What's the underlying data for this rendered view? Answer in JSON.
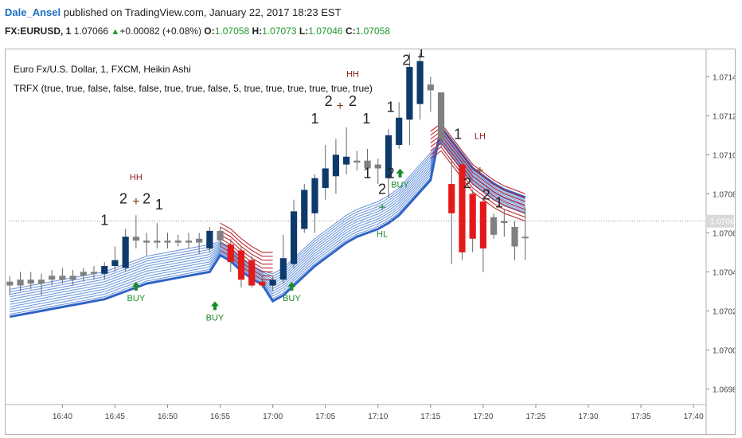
{
  "header": {
    "author": "Dale_Ansel",
    "published_text": "published on TradingView.com, January 22, 2017 18:23 EST",
    "symbol": "FX:EURUSD, 1",
    "last": "1.07066",
    "change": "+0.00082 (+0.08%)",
    "open_label": "O:",
    "open": "1.07058",
    "high_label": "H:",
    "high": "1.07073",
    "low_label": "L:",
    "low": "1.07046",
    "close_label": "C:",
    "close": "1.07058"
  },
  "chart_data": {
    "type": "candlestick",
    "title": "Euro Fx/U.S. Dollar, 1, FXCM, Heikin Ashi",
    "indicator": "TRFX (true, true, false, false, false, true, true, false, 5, true, true, true, true, true, true)",
    "price_label": "1.07066",
    "last_price": 1.07066,
    "y_ticks": [
      1.0714,
      1.0712,
      1.071,
      1.0708,
      1.0706,
      1.0704,
      1.0702,
      1.07,
      1.0698
    ],
    "y_tick_labels": [
      "1.07140",
      "1.07120",
      "1.07100",
      "1.07080",
      "1.07060",
      "1.07040",
      "1.07020",
      "1.07000",
      "1.06980"
    ],
    "ylim": [
      1.06972,
      1.07154
    ],
    "x_ticks": [
      40,
      45,
      50,
      55,
      60,
      65,
      70,
      75,
      80,
      85,
      90,
      95,
      100
    ],
    "x_tick_labels": [
      "16:40",
      "16:45",
      "16:50",
      "16:55",
      "17:00",
      "17:05",
      "17:10",
      "17:15",
      "17:20",
      "17:25",
      "17:30",
      "17:35",
      "17:40"
    ],
    "xlim": [
      34.9,
      101.2
    ],
    "colors": {
      "up": "#0d3a6b",
      "down": "#e31a1a",
      "neutral": "#808080",
      "ribbon_up": "#2f63c7",
      "ribbon_down": "#b8242a",
      "signal": "#1a8a2a",
      "hh": "#8b2020"
    },
    "candles": [
      {
        "t": 35,
        "o": 1.07035,
        "h": 1.07038,
        "l": 1.07028,
        "c": 1.07033,
        "k": "n"
      },
      {
        "t": 36,
        "o": 1.07033,
        "h": 1.0704,
        "l": 1.0703,
        "c": 1.07036,
        "k": "n"
      },
      {
        "t": 37,
        "o": 1.07036,
        "h": 1.0704,
        "l": 1.07031,
        "c": 1.07034,
        "k": "n"
      },
      {
        "t": 38,
        "o": 1.07034,
        "h": 1.07039,
        "l": 1.07028,
        "c": 1.07036,
        "k": "n"
      },
      {
        "t": 39,
        "o": 1.07036,
        "h": 1.07041,
        "l": 1.07033,
        "c": 1.07038,
        "k": "n"
      },
      {
        "t": 40,
        "o": 1.07038,
        "h": 1.07042,
        "l": 1.07034,
        "c": 1.07036,
        "k": "n"
      },
      {
        "t": 41,
        "o": 1.07036,
        "h": 1.07041,
        "l": 1.07033,
        "c": 1.07038,
        "k": "n"
      },
      {
        "t": 42,
        "o": 1.07038,
        "h": 1.07042,
        "l": 1.07035,
        "c": 1.0704,
        "k": "n"
      },
      {
        "t": 43,
        "o": 1.0704,
        "h": 1.07043,
        "l": 1.07036,
        "c": 1.07039,
        "k": "n"
      },
      {
        "t": 44,
        "o": 1.07039,
        "h": 1.07045,
        "l": 1.07036,
        "c": 1.07043,
        "k": "u"
      },
      {
        "t": 45,
        "o": 1.07043,
        "h": 1.07053,
        "l": 1.0704,
        "c": 1.07046,
        "k": "u"
      },
      {
        "t": 46,
        "o": 1.07042,
        "h": 1.07062,
        "l": 1.0704,
        "c": 1.07058,
        "k": "u"
      },
      {
        "t": 47,
        "o": 1.07058,
        "h": 1.07069,
        "l": 1.07052,
        "c": 1.07056,
        "k": "n"
      },
      {
        "t": 48,
        "o": 1.07056,
        "h": 1.0706,
        "l": 1.07048,
        "c": 1.07055,
        "k": "n"
      },
      {
        "t": 49,
        "o": 1.07055,
        "h": 1.07065,
        "l": 1.07052,
        "c": 1.07056,
        "k": "n"
      },
      {
        "t": 50,
        "o": 1.07056,
        "h": 1.0706,
        "l": 1.07052,
        "c": 1.07055,
        "k": "n"
      },
      {
        "t": 51,
        "o": 1.07055,
        "h": 1.07059,
        "l": 1.07053,
        "c": 1.07056,
        "k": "n"
      },
      {
        "t": 52,
        "o": 1.07056,
        "h": 1.0706,
        "l": 1.07052,
        "c": 1.07055,
        "k": "n"
      },
      {
        "t": 53,
        "o": 1.07055,
        "h": 1.0706,
        "l": 1.07049,
        "c": 1.07057,
        "k": "n"
      },
      {
        "t": 54,
        "o": 1.07052,
        "h": 1.07063,
        "l": 1.0705,
        "c": 1.07061,
        "k": "u"
      },
      {
        "t": 55,
        "o": 1.07061,
        "h": 1.07063,
        "l": 1.07053,
        "c": 1.07056,
        "k": "n"
      },
      {
        "t": 56,
        "o": 1.07054,
        "h": 1.07057,
        "l": 1.0704,
        "c": 1.07045,
        "k": "d"
      },
      {
        "t": 57,
        "o": 1.07051,
        "h": 1.07053,
        "l": 1.07032,
        "c": 1.07036,
        "k": "d"
      },
      {
        "t": 58,
        "o": 1.07046,
        "h": 1.07048,
        "l": 1.07032,
        "c": 1.07033,
        "k": "d"
      },
      {
        "t": 59,
        "o": 1.07035,
        "h": 1.07038,
        "l": 1.07032,
        "c": 1.07033,
        "k": "d"
      },
      {
        "t": 60,
        "o": 1.07033,
        "h": 1.07038,
        "l": 1.0703,
        "c": 1.07036,
        "k": "u"
      },
      {
        "t": 61,
        "o": 1.07036,
        "h": 1.07059,
        "l": 1.07034,
        "c": 1.07047,
        "k": "u"
      },
      {
        "t": 62,
        "o": 1.07044,
        "h": 1.07077,
        "l": 1.07042,
        "c": 1.07071,
        "k": "u"
      },
      {
        "t": 63,
        "o": 1.07062,
        "h": 1.07085,
        "l": 1.0706,
        "c": 1.07082,
        "k": "u"
      },
      {
        "t": 64,
        "o": 1.0707,
        "h": 1.0709,
        "l": 1.0706,
        "c": 1.07088,
        "k": "u"
      },
      {
        "t": 65,
        "o": 1.07083,
        "h": 1.07105,
        "l": 1.07077,
        "c": 1.07093,
        "k": "u"
      },
      {
        "t": 66,
        "o": 1.07089,
        "h": 1.07108,
        "l": 1.0708,
        "c": 1.071,
        "k": "u"
      },
      {
        "t": 67,
        "o": 1.07095,
        "h": 1.07114,
        "l": 1.0709,
        "c": 1.07099,
        "k": "u"
      },
      {
        "t": 68,
        "o": 1.07097,
        "h": 1.07102,
        "l": 1.07092,
        "c": 1.07096,
        "k": "n"
      },
      {
        "t": 69,
        "o": 1.07097,
        "h": 1.07103,
        "l": 1.07088,
        "c": 1.07093,
        "k": "n"
      },
      {
        "t": 70,
        "o": 1.07095,
        "h": 1.07098,
        "l": 1.07085,
        "c": 1.07093,
        "k": "n"
      },
      {
        "t": 71,
        "o": 1.07088,
        "h": 1.07113,
        "l": 1.07078,
        "c": 1.0711,
        "k": "u"
      },
      {
        "t": 72,
        "o": 1.07105,
        "h": 1.07127,
        "l": 1.07103,
        "c": 1.07119,
        "k": "u"
      },
      {
        "t": 73,
        "o": 1.07118,
        "h": 1.07152,
        "l": 1.07105,
        "c": 1.07145,
        "k": "u"
      },
      {
        "t": 74,
        "o": 1.07126,
        "h": 1.07152,
        "l": 1.07118,
        "c": 1.07148,
        "k": "u"
      },
      {
        "t": 75,
        "o": 1.07133,
        "h": 1.0714,
        "l": 1.07122,
        "c": 1.07136,
        "k": "n"
      },
      {
        "t": 76,
        "o": 1.07132,
        "h": 1.07132,
        "l": 1.07104,
        "c": 1.07108,
        "k": "n"
      },
      {
        "t": 77,
        "o": 1.07085,
        "h": 1.07098,
        "l": 1.07044,
        "c": 1.0707,
        "k": "d"
      },
      {
        "t": 78,
        "o": 1.07095,
        "h": 1.07097,
        "l": 1.07046,
        "c": 1.0705,
        "k": "d"
      },
      {
        "t": 79,
        "o": 1.0708,
        "h": 1.07082,
        "l": 1.0705,
        "c": 1.07057,
        "k": "d"
      },
      {
        "t": 80,
        "o": 1.07076,
        "h": 1.07078,
        "l": 1.0704,
        "c": 1.07052,
        "k": "d"
      },
      {
        "t": 81,
        "o": 1.07068,
        "h": 1.0707,
        "l": 1.07057,
        "c": 1.07059,
        "k": "n"
      },
      {
        "t": 82,
        "o": 1.07066,
        "h": 1.07072,
        "l": 1.07058,
        "c": 1.07065,
        "k": "n"
      },
      {
        "t": 83,
        "o": 1.07063,
        "h": 1.07066,
        "l": 1.07046,
        "c": 1.07053,
        "k": "n"
      },
      {
        "t": 84,
        "o": 1.07058,
        "h": 1.07073,
        "l": 1.07046,
        "c": 1.07058,
        "k": "n"
      }
    ],
    "ribbon_mid": [
      1.07034,
      1.07035,
      1.07036,
      1.07037,
      1.07038,
      1.07039,
      1.0704,
      1.07041,
      1.07042,
      1.07043,
      1.07045,
      1.07047,
      1.07049,
      1.07051,
      1.07052,
      1.07053,
      1.07054,
      1.07055,
      1.07056,
      1.07057,
      1.07057,
      1.07054,
      1.07049,
      1.07045,
      1.07042,
      1.07042,
      1.07045,
      1.0705,
      1.07055,
      1.0706,
      1.07064,
      1.07068,
      1.07072,
      1.07075,
      1.07077,
      1.07079,
      1.07082,
      1.07086,
      1.07092,
      1.07098,
      1.07104,
      1.07108,
      1.07101,
      1.07094,
      1.07087,
      1.07083,
      1.07079,
      1.07076,
      1.07074,
      1.07072
    ],
    "annotations": [
      {
        "text": "1",
        "t": 44,
        "p": 1.07064
      },
      {
        "text": "2",
        "t": 45.8,
        "p": 1.07075
      },
      {
        "text": "+",
        "t": 47,
        "p": 1.07074
      },
      {
        "text": "2",
        "t": 48,
        "p": 1.07075
      },
      {
        "text": "1",
        "t": 49.2,
        "p": 1.07072
      },
      {
        "text": "HH",
        "t": 47,
        "p": 1.07087
      },
      {
        "text": "BUY",
        "t": 47,
        "p": 1.0703
      },
      {
        "text": "BUY",
        "t": 54.5,
        "p": 1.0702
      },
      {
        "text": "BUY",
        "t": 61.8,
        "p": 1.0703
      },
      {
        "text": "1",
        "t": 64,
        "p": 1.07116
      },
      {
        "text": "2",
        "t": 65.3,
        "p": 1.07125
      },
      {
        "text": "+",
        "t": 66.4,
        "p": 1.07123
      },
      {
        "text": "2",
        "t": 67.6,
        "p": 1.07125
      },
      {
        "text": "1",
        "t": 68.9,
        "p": 1.07116
      },
      {
        "text": "HH",
        "t": 67.6,
        "p": 1.0714
      },
      {
        "text": "1",
        "t": 71.2,
        "p": 1.07122
      },
      {
        "text": "2",
        "t": 72.7,
        "p": 1.07146
      },
      {
        "text": "1",
        "t": 74.1,
        "p": 1.0715
      },
      {
        "text": "1",
        "t": 69,
        "p": 1.07088
      },
      {
        "text": "2",
        "t": 70.4,
        "p": 1.0708
      },
      {
        "text": "2",
        "t": 71.2,
        "p": 1.07088
      },
      {
        "text": "+",
        "t": 70.4,
        "p": 1.07071
      },
      {
        "text": "HL",
        "t": 70.4,
        "p": 1.07058
      },
      {
        "text": "BUY",
        "t": 72.1,
        "p": 1.07088
      },
      {
        "text": "1",
        "t": 77.6,
        "p": 1.07108
      },
      {
        "text": "LH",
        "t": 79.7,
        "p": 1.07108
      },
      {
        "text": "+",
        "t": 79.7,
        "p": 1.0709
      },
      {
        "text": "2",
        "t": 78.5,
        "p": 1.07083
      },
      {
        "text": "2",
        "t": 80.3,
        "p": 1.07077
      },
      {
        "text": "1",
        "t": 81.5,
        "p": 1.07073
      }
    ]
  }
}
